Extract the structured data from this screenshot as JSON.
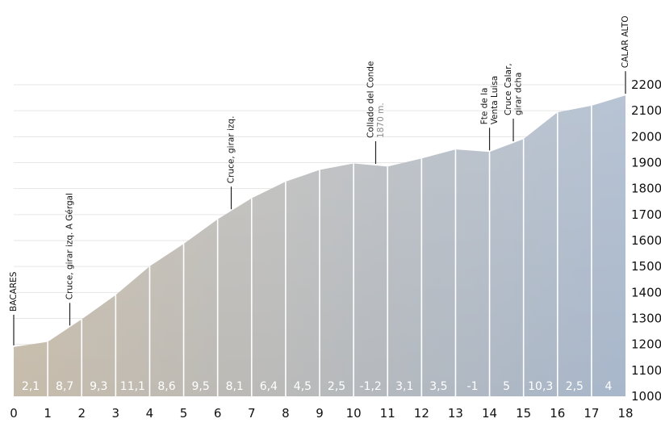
{
  "chart_data": {
    "type": "area",
    "title": "",
    "xlabel": "",
    "ylabel": "",
    "x": [
      0,
      1,
      2,
      3,
      4,
      5,
      6,
      7,
      8,
      9,
      10,
      11,
      12,
      13,
      14,
      15,
      16,
      17,
      18
    ],
    "y": [
      1190,
      1210,
      1297,
      1390,
      1501,
      1587,
      1682,
      1763,
      1827,
      1872,
      1897,
      1885,
      1916,
      1951,
      1941,
      1991,
      2094,
      2119,
      2159
    ],
    "xlim": [
      0,
      18
    ],
    "ylim": [
      1000,
      2200
    ],
    "x_ticks": [
      "0",
      "1",
      "2",
      "3",
      "4",
      "5",
      "6",
      "7",
      "8",
      "9",
      "10",
      "11",
      "12",
      "13",
      "14",
      "15",
      "16",
      "17",
      "18"
    ],
    "y_ticks": [
      "1000",
      "1100",
      "1200",
      "1300",
      "1400",
      "1500",
      "1600",
      "1700",
      "1800",
      "1900",
      "2000",
      "2100",
      "2200"
    ],
    "y_axis_side": "right",
    "segment_grades": [
      "2,1",
      "8,7",
      "9,3",
      "11,1",
      "8,6",
      "9,5",
      "8,1",
      "6,4",
      "4,5",
      "2,5",
      "-1,2",
      "3,1",
      "3,5",
      "-1",
      "5",
      "10,3",
      "2,5",
      "4"
    ],
    "annotations": [
      {
        "km": 0,
        "lines": [
          "BACARES"
        ],
        "sub": ""
      },
      {
        "km": 1.65,
        "lines": [
          "Cruce, girar izq. A Gérgal"
        ],
        "sub": ""
      },
      {
        "km": 6.4,
        "lines": [
          "Cruce, girar izq."
        ],
        "sub": ""
      },
      {
        "km": 10.65,
        "lines": [
          "Collado del Conde"
        ],
        "sub": "1870 m."
      },
      {
        "km": 14,
        "lines": [
          "Fte de la",
          "Venta Luisa"
        ],
        "sub": ""
      },
      {
        "km": 14.7,
        "lines": [
          "Cruce Calar,",
          "girar dcha"
        ],
        "sub": ""
      },
      {
        "km": 18,
        "lines": [
          "CALAR ALTO"
        ],
        "sub": ""
      }
    ],
    "colors": {
      "fill_left": "#c7bcab",
      "fill_right": "#a8b7cb",
      "fill_top": "#bcbfc4",
      "segment_lines": "#ffffff",
      "text": "#111111",
      "grade_text": "#ffffff"
    }
  }
}
